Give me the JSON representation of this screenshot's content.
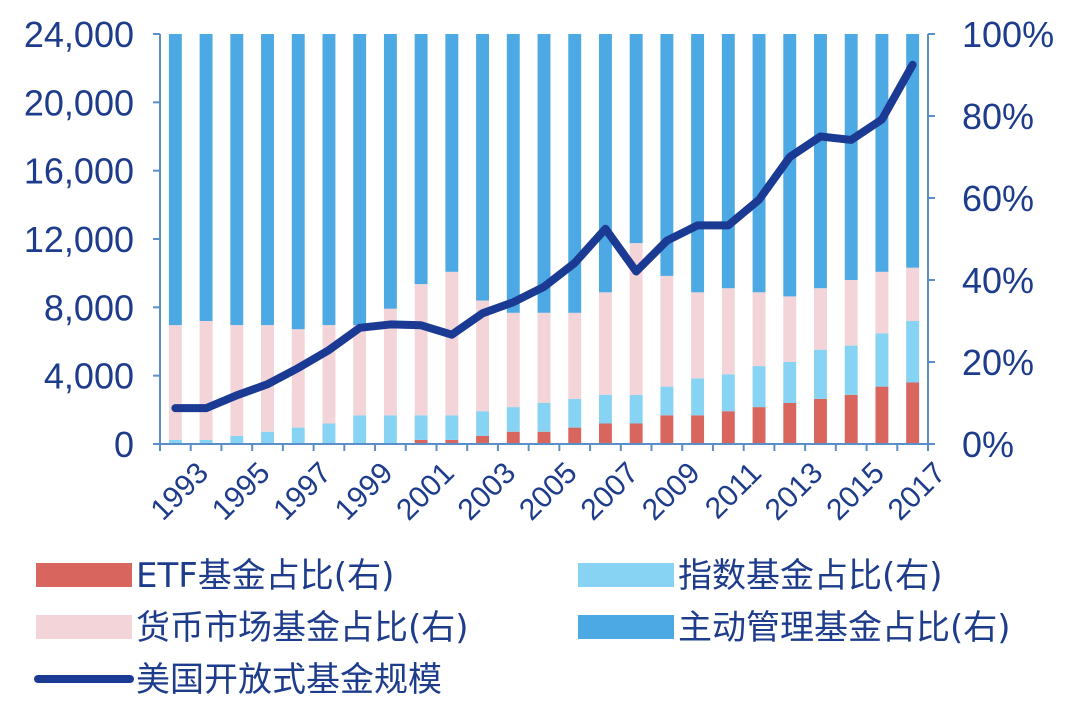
{
  "chart_data": {
    "type": "bar",
    "stacked": true,
    "categories": [
      "1993",
      "1994",
      "1995",
      "1996",
      "1997",
      "1998",
      "1999",
      "2000",
      "2001",
      "2002",
      "2003",
      "2004",
      "2005",
      "2006",
      "2007",
      "2008",
      "2009",
      "2010",
      "2011",
      "2012",
      "2013",
      "2014",
      "2015",
      "2016",
      "2017"
    ],
    "x_tick_labels": [
      "1993",
      "1995",
      "1997",
      "1999",
      "2001",
      "2003",
      "2005",
      "2007",
      "2009",
      "2011",
      "2013",
      "2015",
      "2017"
    ],
    "y_left": {
      "ticks": [
        "0",
        "4,000",
        "8,000",
        "12,000",
        "16,000",
        "20,000",
        "24,000"
      ],
      "ylim": [
        0,
        24000
      ]
    },
    "y_right": {
      "ticks": [
        "0%",
        "20%",
        "40%",
        "60%",
        "80%",
        "100%"
      ],
      "ylim": [
        0,
        100
      ]
    },
    "series": [
      {
        "name": "ETF基金占比(右)",
        "axis": "right",
        "color": "#d9655f",
        "values": [
          0,
          0,
          0,
          0,
          0,
          0,
          0,
          0,
          1,
          1,
          2,
          3,
          3,
          4,
          5,
          5,
          7,
          7,
          8,
          9,
          10,
          11,
          12,
          14,
          15
        ]
      },
      {
        "name": "指数基金占比(右)",
        "axis": "right",
        "color": "#86d3f3",
        "values": [
          1,
          1,
          2,
          3,
          4,
          5,
          7,
          7,
          6,
          6,
          6,
          6,
          7,
          7,
          7,
          7,
          7,
          9,
          9,
          10,
          10,
          12,
          12,
          13,
          15
        ]
      },
      {
        "name": "货币市场基金占比(右)",
        "axis": "right",
        "color": "#f3d4d8",
        "values": [
          28,
          29,
          27,
          26,
          24,
          24,
          22,
          26,
          32,
          35,
          27,
          23,
          22,
          21,
          25,
          37,
          27,
          21,
          21,
          18,
          16,
          15,
          16,
          15,
          13
        ]
      },
      {
        "name": "主动管理基金占比(右)",
        "axis": "right",
        "color": "#4da9e3",
        "values": [
          71,
          70,
          71,
          71,
          72,
          71,
          71,
          67,
          61,
          58,
          65,
          68,
          68,
          68,
          63,
          51,
          59,
          63,
          62,
          63,
          64,
          62,
          60,
          58,
          57
        ]
      },
      {
        "name": "美国开放式基金规模",
        "axis": "left",
        "type": "line",
        "color": "#1a3a93",
        "values": [
          2100,
          2100,
          2850,
          3500,
          4450,
          5500,
          6800,
          7000,
          6950,
          6400,
          7650,
          8300,
          9200,
          10600,
          12600,
          10100,
          11900,
          12800,
          12800,
          14300,
          16800,
          18000,
          17800,
          19000,
          22200
        ]
      }
    ]
  }
}
